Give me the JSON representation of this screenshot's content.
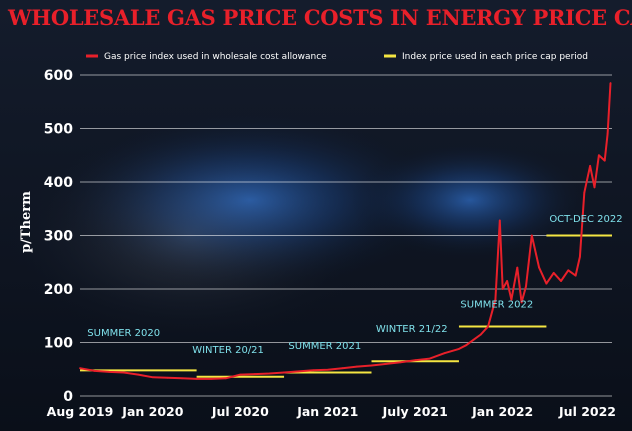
{
  "chart_data": {
    "type": "line",
    "title": "WHOLESALE GAS PRICE COSTS IN ENERGY PRICE CAP",
    "ylabel": "p/Therm",
    "xlabel": "",
    "ylim": [
      0,
      600
    ],
    "yticks": [
      0,
      100,
      200,
      300,
      400,
      500,
      600
    ],
    "xticks": [
      {
        "label": "Aug 2019",
        "month": 0
      },
      {
        "label": "Jan 2020",
        "month": 5
      },
      {
        "label": "Jul 2020",
        "month": 11
      },
      {
        "label": "Jan 2021",
        "month": 17
      },
      {
        "label": "July 2021",
        "month": 23
      },
      {
        "label": "Jan 2022",
        "month": 29
      },
      {
        "label": "Jul 2022",
        "month": 35
      }
    ],
    "xlim": [
      0,
      36.5
    ],
    "grid": true,
    "legend": [
      {
        "label": "Gas price index used in wholesale cost allowance",
        "color": "#e8202a"
      },
      {
        "label": "Index price used in each price cap period",
        "color": "#f5e642"
      }
    ],
    "series": [
      {
        "name": "Gas price index used in wholesale cost allowance",
        "color": "#e8202a",
        "x": [
          0,
          1,
          2,
          3,
          4,
          5,
          6,
          7,
          8,
          9,
          10,
          11,
          12,
          13,
          14,
          15,
          16,
          17,
          18,
          19,
          20,
          21,
          22,
          23,
          24,
          25,
          26,
          26.5,
          27,
          27.5,
          28,
          28.5,
          28.8,
          29,
          29.3,
          29.6,
          30,
          30.3,
          30.6,
          31,
          31.5,
          32,
          32.5,
          33,
          33.5,
          34,
          34.3,
          34.6,
          35,
          35.3,
          35.6,
          36,
          36.2,
          36.4
        ],
        "values": [
          52,
          47,
          45,
          44,
          40,
          35,
          34,
          33,
          32,
          32,
          33,
          40,
          41,
          42,
          44,
          46,
          48,
          49,
          52,
          55,
          57,
          60,
          63,
          67,
          70,
          80,
          88,
          95,
          105,
          115,
          130,
          180,
          328,
          200,
          215,
          180,
          240,
          175,
          205,
          300,
          240,
          210,
          230,
          215,
          235,
          225,
          260,
          380,
          430,
          390,
          450,
          440,
          490,
          585
        ]
      },
      {
        "name": "Index price used in each price cap period",
        "color": "#f5e642",
        "segments": [
          {
            "x0": 0,
            "x1": 8,
            "value": 48
          },
          {
            "x0": 8,
            "x1": 14,
            "value": 36
          },
          {
            "x0": 14,
            "x1": 20,
            "value": 44
          },
          {
            "x0": 20,
            "x1": 26,
            "value": 65
          },
          {
            "x0": 26,
            "x1": 32,
            "value": 130
          },
          {
            "x0": 32,
            "x1": 36.5,
            "value": 300
          }
        ]
      }
    ],
    "annotations": [
      {
        "text": "SUMMER 2020",
        "x": 0.5,
        "y": 112
      },
      {
        "text": "WINTER 20/21",
        "x": 7.7,
        "y": 80
      },
      {
        "text": "SUMMER 2021",
        "x": 14.3,
        "y": 88
      },
      {
        "text": "WINTER 21/22",
        "x": 20.3,
        "y": 120
      },
      {
        "text": "SUMMER 2022",
        "x": 26.1,
        "y": 165
      },
      {
        "text": "OCT-DEC 2022",
        "x": 32.2,
        "y": 325
      }
    ]
  },
  "colors": {
    "title": "#e8202a",
    "gas_line": "#e8202a",
    "cap_line": "#f5e642",
    "period_label": "#7fe0ea"
  }
}
